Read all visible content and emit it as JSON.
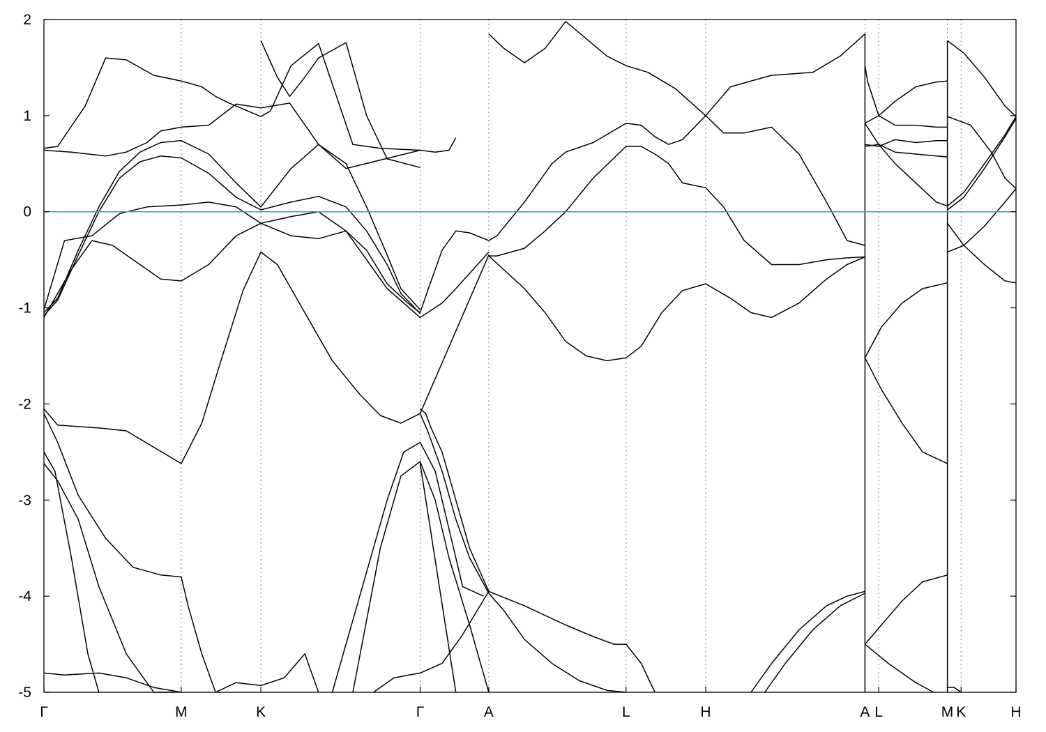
{
  "chart_data": {
    "type": "line",
    "title": "",
    "xlabel": "",
    "ylabel": "",
    "ylim": [
      -5,
      2
    ],
    "yticks": [
      2,
      1,
      0,
      -1,
      -2,
      -3,
      -4,
      -5
    ],
    "ytick_labels": [
      "2",
      "1",
      "0",
      "-1",
      "-2",
      "-3",
      "-4",
      "-5"
    ],
    "xlim": [
      0,
      7.08
    ],
    "kpoints": [
      {
        "label": "Γ",
        "x": 0.0
      },
      {
        "label": "M",
        "x": 1.0
      },
      {
        "label": "K",
        "x": 1.58
      },
      {
        "label": "Γ",
        "x": 2.74
      },
      {
        "label": "A",
        "x": 3.24
      },
      {
        "label": "L",
        "x": 4.24
      },
      {
        "label": "H",
        "x": 4.82
      },
      {
        "label": "A",
        "x": 5.98
      },
      {
        "label": "L",
        "x": 6.08
      },
      {
        "label": "M",
        "x": 6.58
      },
      {
        "label": "K",
        "x": 6.68
      },
      {
        "label": "H",
        "x": 7.08
      }
    ],
    "fermi_level": 0,
    "fermi_color": "#3a9fc4",
    "line_color": "#000000",
    "grid": false,
    "series": [
      {
        "x": [
          0,
          0.1,
          0.3,
          0.45,
          0.6,
          0.8,
          1.0,
          1.15,
          1.25,
          1.35,
          1.58
        ],
        "y": [
          0.66,
          0.68,
          1.1,
          1.6,
          1.58,
          1.42,
          1.36,
          1.3,
          1.2,
          1.13,
          0.99
        ]
      },
      {
        "x": [
          1.58,
          1.65,
          1.8,
          2.0,
          2.25,
          2.45,
          2.6,
          2.74
        ],
        "y": [
          0.99,
          1.05,
          1.52,
          1.75,
          0.7,
          0.66,
          0.65,
          0.64
        ]
      },
      {
        "x": [
          1.58,
          1.7,
          1.79,
          1.9,
          2.0,
          2.2,
          2.35,
          2.5,
          2.74
        ],
        "y": [
          1.78,
          1.4,
          1.2,
          1.4,
          1.6,
          1.76,
          1.0,
          0.55,
          0.46
        ]
      },
      {
        "x": [
          0,
          0.2,
          0.45,
          0.6,
          0.75,
          0.85,
          1.0,
          1.2,
          1.4,
          1.58,
          1.79,
          2.0,
          2.2,
          2.74,
          2.85,
          2.95,
          3.0
        ],
        "y": [
          0.64,
          0.62,
          0.58,
          0.62,
          0.72,
          0.84,
          0.88,
          0.9,
          1.12,
          1.08,
          1.13,
          0.7,
          0.45,
          0.64,
          0.62,
          0.64,
          0.77
        ]
      },
      {
        "x": [
          0,
          0.1,
          0.25,
          0.4,
          0.55,
          0.7,
          0.85,
          1.0,
          1.2,
          1.4,
          1.58,
          1.8,
          2.0,
          2.2,
          2.35,
          2.5,
          2.6,
          2.74
        ],
        "y": [
          -1.05,
          -0.9,
          -0.4,
          0.05,
          0.42,
          0.62,
          0.72,
          0.74,
          0.6,
          0.3,
          0.05,
          0.45,
          0.7,
          0.5,
          0.05,
          -0.45,
          -0.8,
          -1.02
        ]
      },
      {
        "x": [
          0,
          0.1,
          0.25,
          0.4,
          0.55,
          0.7,
          0.85,
          1.0,
          1.2,
          1.4,
          1.58,
          1.8,
          2.0,
          2.2,
          2.35,
          2.5,
          2.6,
          2.74
        ],
        "y": [
          -1.08,
          -0.92,
          -0.45,
          0.0,
          0.35,
          0.52,
          0.58,
          0.56,
          0.4,
          0.15,
          0.02,
          0.1,
          0.16,
          0.05,
          -0.2,
          -0.55,
          -0.85,
          -1.06
        ]
      },
      {
        "x": [
          0,
          0.15,
          0.35,
          0.55,
          0.75,
          1.0,
          1.2,
          1.4,
          1.58,
          1.8,
          2.0,
          2.2,
          2.35,
          2.5,
          2.65,
          2.74,
          2.8,
          2.9,
          3.0,
          3.1,
          3.24
        ],
        "y": [
          -1.02,
          -0.3,
          -0.25,
          -0.02,
          0.05,
          0.07,
          0.1,
          0.05,
          -0.12,
          -0.25,
          -0.28,
          -0.2,
          -0.4,
          -0.75,
          -0.95,
          -1.05,
          -0.8,
          -0.4,
          -0.2,
          -0.22,
          -0.3
        ]
      },
      {
        "x": [
          0,
          0.2,
          0.35,
          0.5,
          0.7,
          0.85,
          1.0,
          1.2,
          1.4,
          1.58,
          1.8,
          2.0,
          2.2,
          2.35,
          2.5,
          2.74,
          2.9,
          3.0,
          3.24
        ],
        "y": [
          -1.1,
          -0.6,
          -0.3,
          -0.35,
          -0.55,
          -0.7,
          -0.72,
          -0.55,
          -0.25,
          -0.12,
          -0.05,
          0.0,
          -0.2,
          -0.5,
          -0.8,
          -1.1,
          -0.95,
          -0.8,
          -0.42
        ]
      },
      {
        "x": [
          0,
          0.1,
          0.4,
          0.6,
          0.8,
          1.0,
          1.15,
          1.3,
          1.45,
          1.58,
          1.7,
          1.9,
          2.1,
          2.3,
          2.45,
          2.6,
          2.74,
          3.24
        ],
        "y": [
          -2.05,
          -2.22,
          -2.25,
          -2.28,
          -2.45,
          -2.62,
          -2.2,
          -1.5,
          -0.82,
          -0.42,
          -0.55,
          -1.05,
          -1.55,
          -1.9,
          -2.12,
          -2.2,
          -2.1,
          -0.45
        ]
      },
      {
        "x": [
          2.74,
          2.78,
          2.82,
          2.9,
          3.0,
          3.1,
          3.24
        ],
        "y": [
          -2.05,
          -2.1,
          -2.25,
          -2.5,
          -3.0,
          -3.5,
          -3.95
        ]
      },
      {
        "x": [
          2.74,
          2.8,
          2.9,
          3.0,
          3.1,
          3.24
        ],
        "y": [
          -2.1,
          -2.3,
          -2.7,
          -3.2,
          -3.6,
          -3.97
        ]
      },
      {
        "x": [
          3.24,
          3.3,
          3.5,
          3.7,
          3.8,
          4.0,
          4.24
        ],
        "y": [
          -0.3,
          -0.25,
          0.1,
          0.5,
          0.62,
          0.72,
          0.92
        ]
      },
      {
        "x": [
          4.24,
          4.35,
          4.45,
          4.55,
          4.65,
          4.82,
          4.95,
          5.1,
          5.3,
          5.5,
          5.7,
          5.85,
          5.98
        ],
        "y": [
          0.92,
          0.9,
          0.78,
          0.7,
          0.75,
          1.0,
          0.82,
          0.82,
          0.88,
          0.6,
          0.1,
          -0.3,
          -0.35
        ]
      },
      {
        "x": [
          3.24,
          3.3,
          3.5,
          3.65,
          3.8,
          4.0,
          4.24,
          4.35,
          4.45,
          4.55,
          4.65,
          4.82,
          4.95,
          5.1,
          5.3,
          5.5,
          5.7,
          5.85,
          5.98
        ],
        "y": [
          -0.46,
          -0.46,
          -0.38,
          -0.2,
          0.0,
          0.35,
          0.68,
          0.68,
          0.6,
          0.5,
          0.3,
          0.25,
          0.05,
          -0.3,
          -0.55,
          -0.55,
          -0.5,
          -0.48,
          -0.47
        ]
      },
      {
        "x": [
          3.24,
          3.5,
          3.65,
          3.8,
          3.95,
          4.1,
          4.24,
          4.35,
          4.5,
          4.65,
          4.82,
          5.0,
          5.15,
          5.3,
          5.5,
          5.7,
          5.85,
          5.98
        ],
        "y": [
          -0.46,
          -0.8,
          -1.05,
          -1.35,
          -1.5,
          -1.55,
          -1.52,
          -1.4,
          -1.05,
          -0.82,
          -0.75,
          -0.9,
          -1.05,
          -1.1,
          -0.95,
          -0.7,
          -0.55,
          -0.47
        ]
      },
      {
        "x": [
          3.24,
          3.35,
          3.5,
          3.65,
          3.8,
          3.95,
          4.1,
          4.24,
          4.4,
          4.6,
          4.82,
          5.0,
          5.3,
          5.6,
          5.8,
          5.98
        ],
        "y": [
          1.85,
          1.7,
          1.55,
          1.7,
          1.98,
          1.8,
          1.62,
          1.52,
          1.45,
          1.28,
          1.0,
          1.3,
          1.42,
          1.45,
          1.62,
          1.85
        ]
      },
      {
        "x": [
          3.24,
          3.5,
          3.8,
          4.0,
          4.15,
          4.24,
          4.35,
          4.45
        ],
        "y": [
          -3.95,
          -4.1,
          -4.3,
          -4.42,
          -4.5,
          -4.5,
          -4.7,
          -5.0
        ]
      },
      {
        "x": [
          3.24,
          3.35,
          3.5,
          3.7,
          3.9,
          4.1,
          4.24
        ],
        "y": [
          -3.97,
          -4.15,
          -4.45,
          -4.7,
          -4.88,
          -4.98,
          -5.0
        ]
      },
      {
        "x": [
          5.15,
          5.3,
          5.5,
          5.7,
          5.85,
          5.98
        ],
        "y": [
          -5.0,
          -4.7,
          -4.35,
          -4.1,
          -4.0,
          -3.95
        ]
      },
      {
        "x": [
          5.25,
          5.4,
          5.6,
          5.8,
          5.98
        ],
        "y": [
          -5.0,
          -4.7,
          -4.35,
          -4.1,
          -3.97
        ]
      },
      {
        "x": [
          0,
          0.08,
          0.2,
          0.32,
          0.4
        ],
        "y": [
          -2.5,
          -2.7,
          -3.6,
          -4.6,
          -5.0
        ]
      },
      {
        "x": [
          0,
          0.1,
          0.25,
          0.4,
          0.6,
          0.8,
          0.95
        ],
        "y": [
          -2.62,
          -2.8,
          -3.2,
          -3.9,
          -4.6,
          -5.0,
          -5.0
        ]
      },
      {
        "x": [
          0,
          0.1,
          0.25,
          0.45,
          0.65,
          0.85,
          1.0,
          1.05,
          1.15,
          1.25
        ],
        "y": [
          -2.1,
          -2.4,
          -2.95,
          -3.4,
          -3.7,
          -3.78,
          -3.8,
          -4.1,
          -4.6,
          -5.0
        ]
      },
      {
        "x": [
          1.25,
          1.4,
          1.58,
          1.75,
          1.9,
          2.0
        ],
        "y": [
          -5.0,
          -4.9,
          -4.93,
          -4.85,
          -4.6,
          -5.0
        ]
      },
      {
        "x": [
          0,
          0.15,
          0.4,
          0.6,
          0.8,
          1.0
        ],
        "y": [
          -4.8,
          -4.82,
          -4.8,
          -4.85,
          -4.95,
          -5.0
        ]
      },
      {
        "x": [
          2.1,
          2.3,
          2.5,
          2.62,
          2.74,
          2.85,
          2.95,
          3.05,
          3.2
        ],
        "y": [
          -5.0,
          -4.0,
          -3.0,
          -2.5,
          -2.4,
          -2.7,
          -3.3,
          -3.9,
          -4.0
        ]
      },
      {
        "x": [
          2.25,
          2.45,
          2.6,
          2.74,
          2.85,
          2.95,
          3.1,
          3.24
        ],
        "y": [
          -5.0,
          -3.5,
          -2.75,
          -2.6,
          -3.0,
          -3.6,
          -4.3,
          -5.0
        ]
      },
      {
        "x": [
          2.4,
          2.55,
          2.74,
          2.9,
          3.05,
          3.24
        ],
        "y": [
          -5.0,
          -4.85,
          -4.8,
          -4.7,
          -4.4,
          -3.95
        ]
      },
      {
        "x": [
          2.74,
          3.0
        ],
        "y": [
          -2.62,
          -5.0
        ]
      },
      {
        "x": [
          5.98,
          6.0,
          6.08,
          6.2,
          6.35,
          6.5,
          6.58
        ],
        "y": [
          1.52,
          1.35,
          1.0,
          0.9,
          0.9,
          0.88,
          0.88
        ]
      },
      {
        "x": [
          5.98,
          6.08,
          6.2,
          6.35,
          6.5,
          6.58
        ],
        "y": [
          0.92,
          1.0,
          1.15,
          1.3,
          1.35,
          1.36
        ]
      },
      {
        "x": [
          5.98,
          6.08,
          6.2,
          6.35,
          6.5,
          6.58
        ],
        "y": [
          0.68,
          0.7,
          0.62,
          0.6,
          0.58,
          0.57
        ]
      },
      {
        "x": [
          5.98,
          6.08,
          6.2,
          6.35,
          6.5,
          6.58
        ],
        "y": [
          0.7,
          0.68,
          0.75,
          0.72,
          0.74,
          0.74
        ]
      },
      {
        "x": [
          5.98,
          6.08,
          6.2,
          6.35,
          6.5,
          6.58
        ],
        "y": [
          0.92,
          0.7,
          0.5,
          0.3,
          0.1,
          0.06
        ]
      },
      {
        "x": [
          5.98,
          6.1,
          6.25,
          6.4,
          6.58
        ],
        "y": [
          -1.52,
          -1.2,
          -0.95,
          -0.8,
          -0.74
        ]
      },
      {
        "x": [
          5.98,
          6.1,
          6.25,
          6.4,
          6.58
        ],
        "y": [
          -1.52,
          -1.85,
          -2.2,
          -2.5,
          -2.62
        ]
      },
      {
        "x": [
          5.98,
          6.1,
          6.25,
          6.4,
          6.58
        ],
        "y": [
          -4.5,
          -4.3,
          -4.05,
          -3.85,
          -3.78
        ]
      },
      {
        "x": [
          5.98,
          6.15,
          6.35,
          6.48
        ],
        "y": [
          -4.5,
          -4.7,
          -4.9,
          -5.0
        ]
      },
      {
        "x": [
          6.58,
          6.7,
          6.85,
          7.0,
          7.08
        ],
        "y": [
          1.78,
          1.65,
          1.4,
          1.1,
          0.99
        ]
      },
      {
        "x": [
          6.58,
          6.75,
          6.9,
          7.0,
          7.08
        ],
        "y": [
          0.99,
          0.9,
          0.62,
          0.35,
          0.24
        ]
      },
      {
        "x": [
          6.58,
          6.7,
          6.85,
          7.0,
          7.08
        ],
        "y": [
          0.06,
          0.2,
          0.5,
          0.8,
          0.99
        ]
      },
      {
        "x": [
          6.58,
          6.7,
          6.85,
          7.0,
          7.08
        ],
        "y": [
          0.02,
          0.15,
          0.45,
          0.78,
          0.97
        ]
      },
      {
        "x": [
          6.58,
          6.7,
          6.85,
          7.0,
          7.08
        ],
        "y": [
          -0.42,
          -0.35,
          -0.15,
          0.1,
          0.24
        ]
      },
      {
        "x": [
          6.58,
          6.7,
          6.85,
          7.0,
          7.08
        ],
        "y": [
          -0.12,
          -0.35,
          -0.55,
          -0.72,
          -0.74
        ]
      },
      {
        "x": [
          6.58,
          6.63,
          6.68
        ],
        "y": [
          -4.95,
          -4.95,
          -5.0
        ]
      },
      {
        "x": [
          5.98,
          5.98
        ],
        "y": [
          1.85,
          -5.0
        ]
      },
      {
        "x": [
          6.58,
          6.58
        ],
        "y": [
          1.78,
          -5.0
        ]
      }
    ]
  }
}
